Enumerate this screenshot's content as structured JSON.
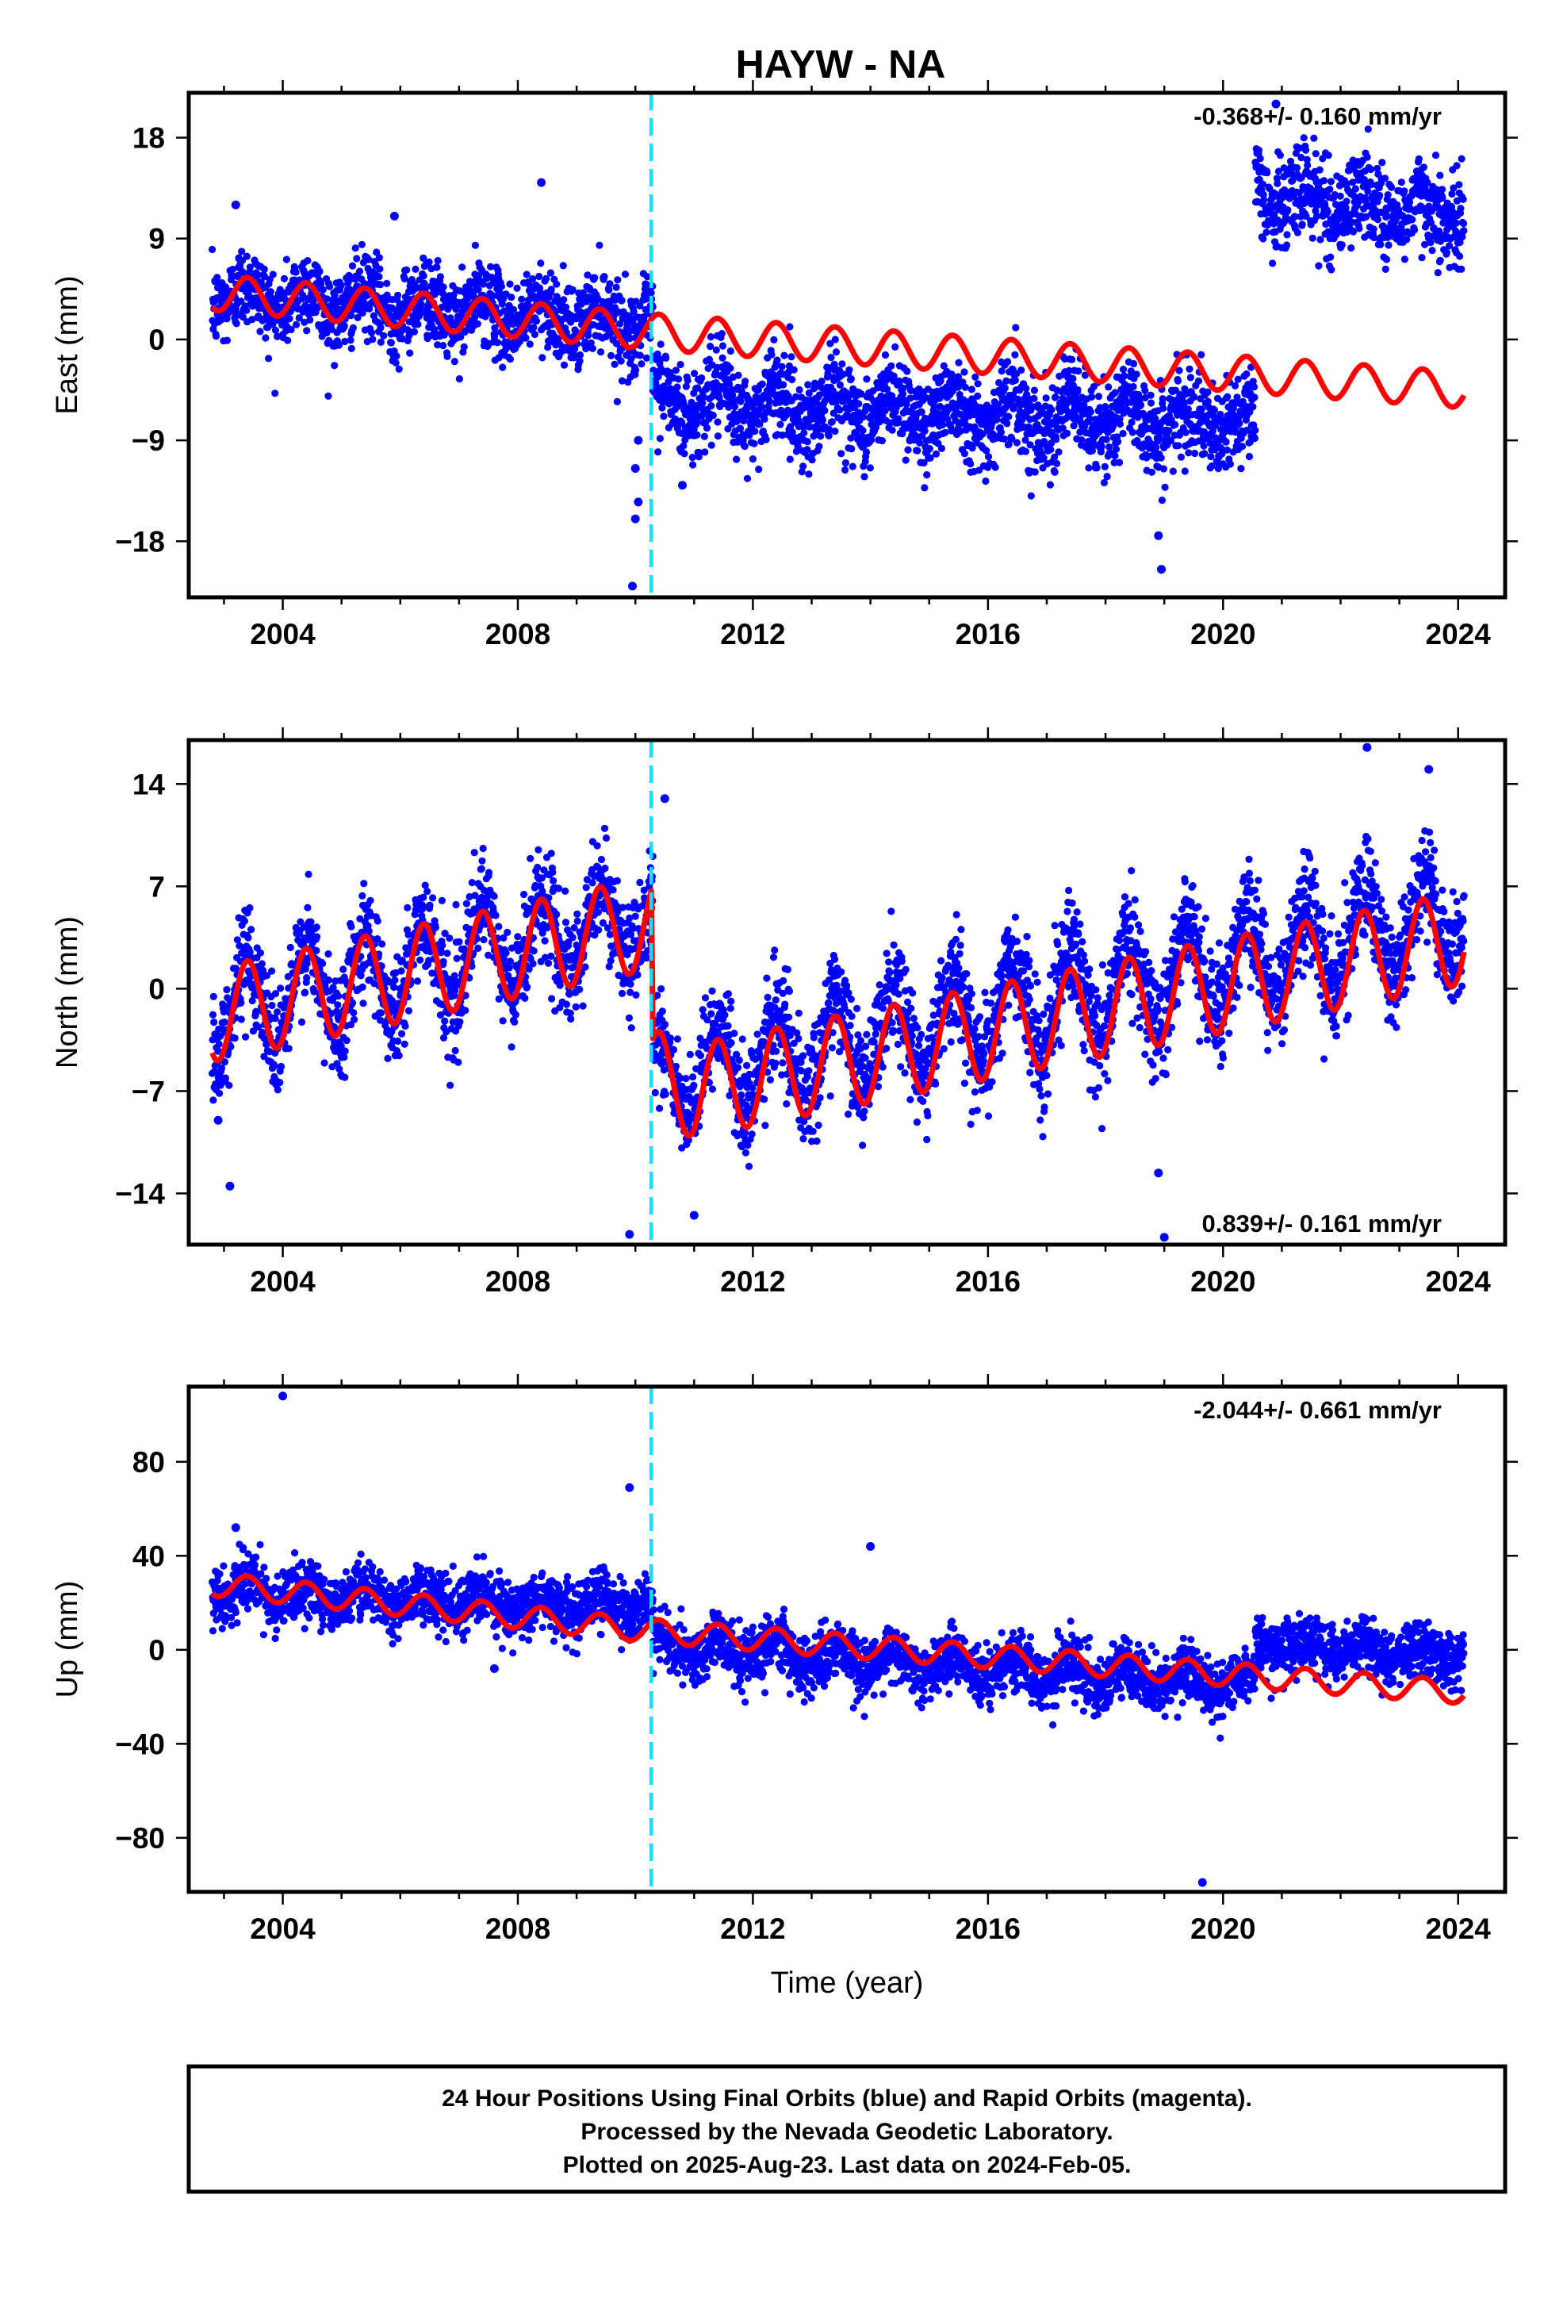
{
  "title": "HAYW - NA",
  "footer": {
    "lines": [
      "24 Hour Positions Using Final Orbits (blue) and Rapid Orbits (magenta).",
      "Processed by the Nevada Geodetic Laboratory.",
      "Plotted on 2025-Aug-23. Last data on 2024-Feb-05."
    ]
  },
  "colors": {
    "data": "#0000ff",
    "model": "#ff0000",
    "event_line": "#00e5ff",
    "frame": "#000000"
  },
  "chart_data": [
    {
      "type": "scatter",
      "component": "East",
      "ylabel": "East (mm)",
      "xlabel": "",
      "rate_text": "-0.368+/- 0.160 mm/yr",
      "rate_position": "top-right",
      "xlim": [
        2002.4,
        2024.8
      ],
      "ylim": [
        -23,
        22
      ],
      "xticks": [
        "2004",
        "2008",
        "2012",
        "2016",
        "2020",
        "2024"
      ],
      "yticks": [
        "18",
        "9",
        "0",
        "-9",
        "-18"
      ],
      "event_line_x": 2010.27,
      "data_series": {
        "name": "",
        "segments": [
          {
            "x": [
              2002.8,
              2010.3
            ],
            "mean": [
              4.0,
              1.5
            ],
            "scatter": 1.8,
            "seasonal_amp": 1.2
          },
          {
            "x": [
              2010.3,
              2020.55
            ],
            "mean": [
              -5.5,
              -7.5
            ],
            "scatter": 2.0,
            "seasonal_amp": 1.5
          },
          {
            "x": [
              2020.55,
              2024.1
            ],
            "mean": [
              13.0,
              11.0
            ],
            "scatter": 2.0,
            "seasonal_amp": 1.2
          }
        ],
        "outliers": [
          [
            2010.05,
            -9
          ],
          [
            2010.0,
            -11.5
          ],
          [
            2010.05,
            -14.5
          ],
          [
            2010.0,
            -16
          ],
          [
            2009.95,
            -22
          ],
          [
            2018.9,
            -17.5
          ],
          [
            2018.95,
            -20.5
          ],
          [
            2008.4,
            14
          ],
          [
            2003.2,
            12
          ],
          [
            2005.9,
            11
          ],
          [
            2010.8,
            -13
          ],
          [
            2020.9,
            21
          ]
        ]
      },
      "model_series": {
        "name": "",
        "trend": [
          [
            2002.8,
            4.2
          ],
          [
            2010.27,
            0.7
          ],
          [
            2024.1,
            -4.5
          ]
        ],
        "seasonal_amp": 1.6
      }
    },
    {
      "type": "scatter",
      "component": "North",
      "ylabel": "North (mm)",
      "xlabel": "",
      "rate_text": "0.839+/- 0.161 mm/yr",
      "rate_position": "bottom-right",
      "xlim": [
        2002.4,
        2024.8
      ],
      "ylim": [
        -17.5,
        17
      ],
      "xticks": [
        "2004",
        "2008",
        "2012",
        "2016",
        "2020",
        "2024"
      ],
      "yticks": [
        "14",
        "7",
        "0",
        "-7",
        "-14"
      ],
      "event_line_x": 2010.27,
      "data_series": {
        "name": "",
        "segments": [
          {
            "x": [
              2002.8,
              2010.3
            ],
            "mean": [
              -1.5,
              5.0
            ],
            "scatter": 1.8,
            "seasonal_amp": 3.0
          },
          {
            "x": [
              2010.3,
              2024.1
            ],
            "mean": [
              -6.5,
              5.0
            ],
            "scatter": 1.8,
            "seasonal_amp": 3.2
          }
        ],
        "outliers": [
          [
            2003.1,
            -13.5
          ],
          [
            2002.9,
            -9
          ],
          [
            2009.9,
            -16.8
          ],
          [
            2011.0,
            -15.5
          ],
          [
            2018.9,
            -12.6
          ],
          [
            2019.0,
            -17.0
          ],
          [
            2022.45,
            16.5
          ],
          [
            2023.5,
            15
          ],
          [
            2010.5,
            13
          ]
        ]
      },
      "model_series": {
        "name": "",
        "trend": [
          [
            2002.8,
            -1.8
          ],
          [
            2010.27,
            4.5
          ],
          [
            2010.3,
            -6.0
          ],
          [
            2011.0,
            -7.0
          ],
          [
            2024.1,
            3.5
          ]
        ],
        "seasonal_amp": 3.2
      }
    },
    {
      "type": "scatter",
      "component": "Up",
      "ylabel": "Up (mm)",
      "xlabel": "Time (year)",
      "rate_text": "-2.044+/- 0.661 mm/yr",
      "rate_position": "top-right",
      "xlim": [
        2002.4,
        2024.8
      ],
      "ylim": [
        -103,
        112
      ],
      "xticks": [
        "2004",
        "2008",
        "2012",
        "2016",
        "2020",
        "2024"
      ],
      "yticks": [
        "80",
        "40",
        "0",
        "-40",
        "-80"
      ],
      "event_line_x": 2010.27,
      "data_series": {
        "name": "",
        "segments": [
          {
            "x": [
              2002.8,
              2010.3
            ],
            "mean": [
              25,
              18
            ],
            "scatter": 6,
            "seasonal_amp": 4
          },
          {
            "x": [
              2010.3,
              2020.55
            ],
            "mean": [
              2,
              -15
            ],
            "scatter": 6,
            "seasonal_amp": 5
          },
          {
            "x": [
              2020.55,
              2024.1
            ],
            "mean": [
              3,
              -3
            ],
            "scatter": 6,
            "seasonal_amp": 3
          }
        ],
        "outliers": [
          [
            2004.0,
            108
          ],
          [
            2009.9,
            69
          ],
          [
            2014.0,
            44
          ],
          [
            2019.65,
            -99
          ],
          [
            2007.6,
            -8
          ],
          [
            2003.2,
            52
          ]
        ]
      },
      "model_series": {
        "name": "",
        "trend": [
          [
            2002.8,
            28
          ],
          [
            2010.27,
            8
          ],
          [
            2024.1,
            -18
          ]
        ],
        "seasonal_amp": 5
      }
    }
  ]
}
